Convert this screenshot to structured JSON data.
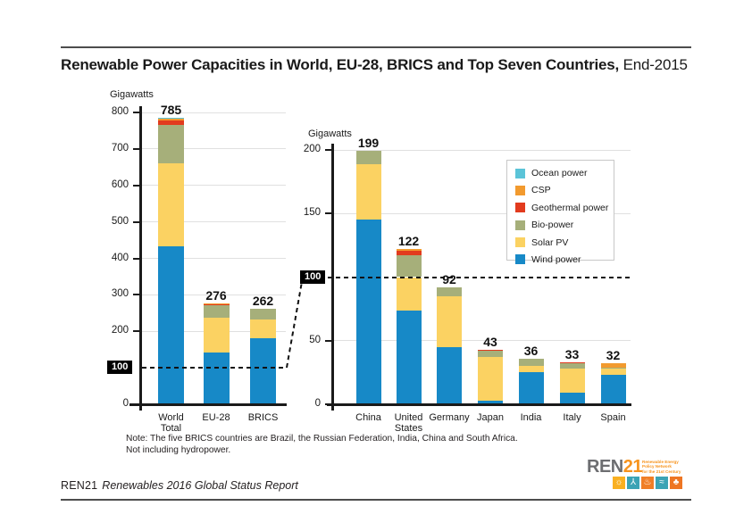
{
  "title": {
    "bold": "Renewable Power Capacities in World, EU-28, BRICS and Top Seven Countries,",
    "regular": "End-2015"
  },
  "highlight_tick_label": "100",
  "legend": [
    {
      "label": "Ocean power",
      "color": "#5bc4d8"
    },
    {
      "label": "CSP",
      "color": "#f29a2e"
    },
    {
      "label": "Geothermal power",
      "color": "#e23b1e"
    },
    {
      "label": "Bio-power",
      "color": "#a6af7a"
    },
    {
      "label": "Solar PV",
      "color": "#fbd262"
    },
    {
      "label": "Wind power",
      "color": "#1789c7"
    }
  ],
  "chart_data": [
    {
      "type": "bar",
      "stacked": true,
      "unit": "Gigawatts",
      "categories": [
        "World Total",
        "EU-28",
        "BRICS"
      ],
      "category_lines": [
        [
          "World",
          "Total"
        ],
        [
          "EU-28"
        ],
        [
          "BRICS"
        ]
      ],
      "totals": [
        "785",
        "276",
        "262"
      ],
      "series": [
        {
          "name": "Wind power",
          "color": "#1789c7",
          "values": [
            433,
            142,
            182
          ]
        },
        {
          "name": "Solar PV",
          "color": "#fbd262",
          "values": [
            227,
            95,
            51
          ]
        },
        {
          "name": "Bio-power",
          "color": "#a6af7a",
          "values": [
            106,
            36,
            29
          ]
        },
        {
          "name": "Geothermal power",
          "color": "#e23b1e",
          "values": [
            13,
            1,
            0
          ]
        },
        {
          "name": "CSP",
          "color": "#f29a2e",
          "values": [
            5,
            2,
            0
          ]
        },
        {
          "name": "Ocean power",
          "color": "#5bc4d8",
          "values": [
            1,
            0,
            0
          ]
        }
      ],
      "ylim": [
        0,
        800
      ],
      "yticks": [
        0,
        100,
        200,
        300,
        400,
        500,
        600,
        700,
        800
      ],
      "highlighted_tick": 100,
      "grid": true,
      "legend_position": "none"
    },
    {
      "type": "bar",
      "stacked": true,
      "unit": "Gigawatts",
      "categories": [
        "China",
        "United States",
        "Germany",
        "Japan",
        "India",
        "Italy",
        "Spain"
      ],
      "category_lines": [
        [
          "China"
        ],
        [
          "United",
          "States"
        ],
        [
          "Germany"
        ],
        [
          "Japan"
        ],
        [
          "India"
        ],
        [
          "Italy"
        ],
        [
          "Spain"
        ]
      ],
      "totals": [
        "199",
        "122",
        "92",
        "43",
        "36",
        "33",
        "32"
      ],
      "series": [
        {
          "name": "Wind power",
          "color": "#1789c7",
          "values": [
            145,
            74,
            45,
            3,
            25,
            9,
            23
          ]
        },
        {
          "name": "Solar PV",
          "color": "#fbd262",
          "values": [
            44,
            26,
            40,
            34,
            5,
            19,
            5
          ]
        },
        {
          "name": "Bio-power",
          "color": "#a6af7a",
          "values": [
            10,
            17,
            7,
            5,
            6,
            4,
            1
          ]
        },
        {
          "name": "Geothermal power",
          "color": "#e23b1e",
          "values": [
            0,
            4,
            0,
            1,
            0,
            1,
            0
          ]
        },
        {
          "name": "CSP",
          "color": "#f29a2e",
          "values": [
            0,
            1,
            0,
            0,
            0,
            0,
            3
          ]
        },
        {
          "name": "Ocean power",
          "color": "#5bc4d8",
          "values": [
            0,
            0,
            0,
            0,
            0,
            0,
            0
          ]
        }
      ],
      "ylim": [
        0,
        200
      ],
      "yticks": [
        0,
        50,
        100,
        150,
        200
      ],
      "highlighted_tick": 100,
      "grid": true,
      "legend_position": "upper right"
    }
  ],
  "note": {
    "line1": "Note: The five BRICS countries are Brazil, the Russian Federation, India, China and South Africa.",
    "line2": "Not including hydropower."
  },
  "footer": {
    "brand": "REN21",
    "report": "Renewables 2016 Global Status Report"
  },
  "logo": {
    "brand_gray": "REN",
    "brand_orange": "21",
    "tagline_lines": [
      "Renewable Energy",
      "Policy Network",
      "for the 21st Century"
    ],
    "tiles": [
      {
        "icon": "sun-icon",
        "color": "#f9b021",
        "glyph": "☼"
      },
      {
        "icon": "wind-turbine-icon",
        "color": "#3ba3b5",
        "glyph": "⅄"
      },
      {
        "icon": "water-drop-icon",
        "color": "#f07e26",
        "glyph": "♨"
      },
      {
        "icon": "waves-icon",
        "color": "#3ba3b5",
        "glyph": "≈"
      },
      {
        "icon": "leaf-icon",
        "color": "#ee7623",
        "glyph": "♣"
      }
    ]
  }
}
